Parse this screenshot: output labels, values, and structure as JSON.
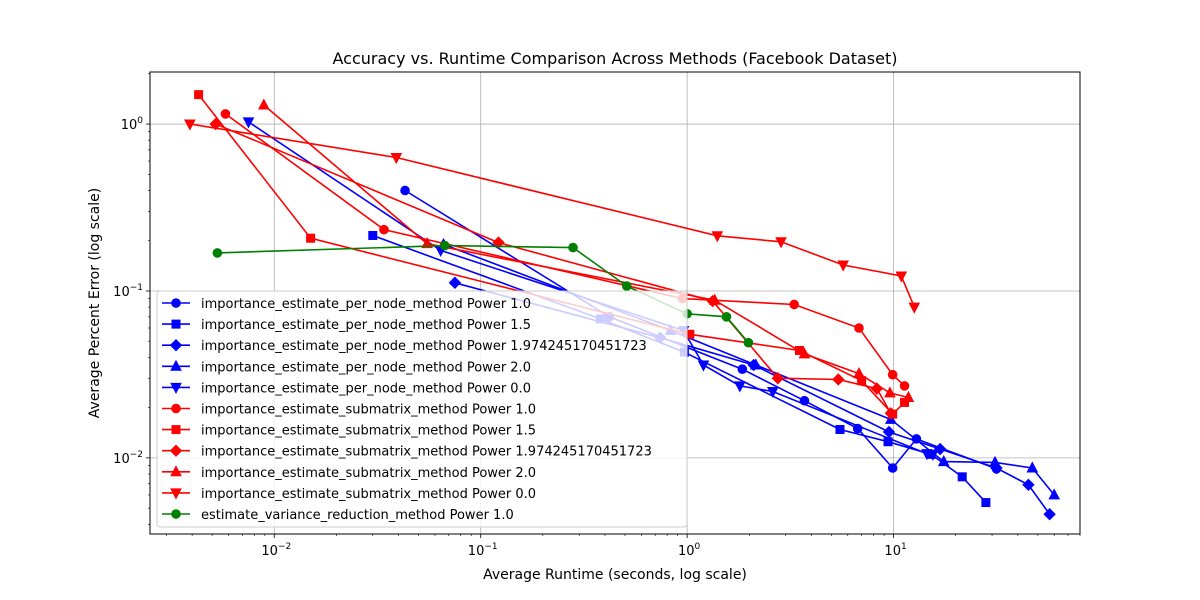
{
  "chart_data": {
    "type": "line",
    "title": "Accuracy vs. Runtime Comparison Across Methods (Facebook Dataset)",
    "xlabel": "Average Runtime (seconds, log scale)",
    "ylabel": "Average Percent Error (log scale)",
    "xscale": "log",
    "yscale": "log",
    "xlim": [
      0.0025,
      80
    ],
    "ylim": [
      0.0035,
      2.05
    ],
    "grid": true,
    "legend_position": "bottom-left",
    "x_ticks": [
      {
        "base": "10",
        "exp": "−2"
      },
      {
        "base": "10",
        "exp": "−1"
      },
      {
        "base": "10",
        "exp": "0"
      },
      {
        "base": "10",
        "exp": "1"
      }
    ],
    "y_ticks": [
      {
        "base": "10",
        "exp": "−2"
      },
      {
        "base": "10",
        "exp": "−1"
      },
      {
        "base": "10",
        "exp": "0"
      }
    ],
    "series": [
      {
        "name": "importance_estimate_per_node_method Power 1.0",
        "color": "#0000ff",
        "marker": "circle",
        "x": [
          0.043,
          0.42,
          1.85,
          3.7,
          6.7,
          9.9,
          12.9,
          31.5
        ],
        "y": [
          0.4,
          0.07,
          0.034,
          0.022,
          0.015,
          0.0087,
          0.013,
          0.0086
        ]
      },
      {
        "name": "importance_estimate_per_node_method Power 1.5",
        "color": "#0000ff",
        "marker": "square",
        "x": [
          0.03,
          0.38,
          0.97,
          5.5,
          9.4,
          15.2,
          21.5,
          28.0
        ],
        "y": [
          0.215,
          0.068,
          0.043,
          0.0148,
          0.0125,
          0.0105,
          0.0077,
          0.0054
        ]
      },
      {
        "name": "importance_estimate_per_node_method Power 1.974245170451723",
        "color": "#0000ff",
        "marker": "diamond",
        "x": [
          0.075,
          0.74,
          2.1,
          9.5,
          16.8,
          31.5,
          45.0,
          57.0
        ],
        "y": [
          0.112,
          0.0525,
          0.036,
          0.0143,
          0.0113,
          0.0087,
          0.0069,
          0.0046
        ]
      },
      {
        "name": "importance_estimate_per_node_method Power 2.0",
        "color": "#0000ff",
        "marker": "triangle-up",
        "x": [
          0.066,
          0.83,
          2.15,
          9.7,
          17.5,
          31.0,
          47.0,
          60.0
        ],
        "y": [
          0.19,
          0.058,
          0.036,
          0.017,
          0.0095,
          0.0094,
          0.0087,
          0.006
        ]
      },
      {
        "name": "importance_estimate_per_node_method Power 0.0",
        "color": "#0000ff",
        "marker": "triangle-down",
        "x": [
          0.0075,
          0.064,
          0.96,
          1.2,
          1.8,
          2.6,
          14.5,
          15.5
        ],
        "y": [
          1.03,
          0.175,
          0.058,
          0.036,
          0.027,
          0.025,
          0.0106,
          0.0105
        ]
      },
      {
        "name": "importance_estimate_submatrix_method Power 1.0",
        "color": "#ff0000",
        "marker": "circle",
        "x": [
          0.0058,
          0.034,
          0.95,
          3.3,
          6.8,
          9.9,
          11.3
        ],
        "y": [
          1.15,
          0.233,
          0.09,
          0.083,
          0.06,
          0.0315,
          0.027
        ]
      },
      {
        "name": "importance_estimate_submatrix_method Power 1.5",
        "color": "#ff0000",
        "marker": "square",
        "x": [
          0.0043,
          0.015,
          1.03,
          3.5,
          7.0,
          9.9,
          11.3
        ],
        "y": [
          1.5,
          0.207,
          0.055,
          0.044,
          0.029,
          0.0183,
          0.0215
        ]
      },
      {
        "name": "importance_estimate_submatrix_method Power 1.974245170451723",
        "color": "#ff0000",
        "marker": "diamond",
        "x": [
          0.0052,
          0.122,
          1.33,
          2.75,
          5.4,
          8.3,
          9.7
        ],
        "y": [
          1.0,
          0.195,
          0.087,
          0.03,
          0.0295,
          0.026,
          0.0185
        ]
      },
      {
        "name": "importance_estimate_submatrix_method Power 2.0",
        "color": "#ff0000",
        "marker": "triangle-up",
        "x": [
          0.0089,
          0.055,
          1.36,
          3.7,
          6.8,
          9.6,
          11.8
        ],
        "y": [
          1.3,
          0.192,
          0.088,
          0.042,
          0.032,
          0.0245,
          0.023
        ]
      },
      {
        "name": "importance_estimate_submatrix_method Power 0.0",
        "color": "#ff0000",
        "marker": "triangle-down",
        "x": [
          0.0039,
          0.039,
          1.4,
          2.85,
          5.7,
          10.9,
          12.6
        ],
        "y": [
          1.0,
          0.63,
          0.214,
          0.197,
          0.143,
          0.123,
          0.08
        ]
      },
      {
        "name": "estimate_variance_reduction_method Power 1.0",
        "color": "#008000",
        "marker": "circle",
        "x": [
          0.0053,
          0.067,
          0.28,
          0.51,
          1.0,
          1.55,
          1.98
        ],
        "y": [
          0.169,
          0.187,
          0.182,
          0.107,
          0.073,
          0.07,
          0.049
        ]
      }
    ]
  }
}
